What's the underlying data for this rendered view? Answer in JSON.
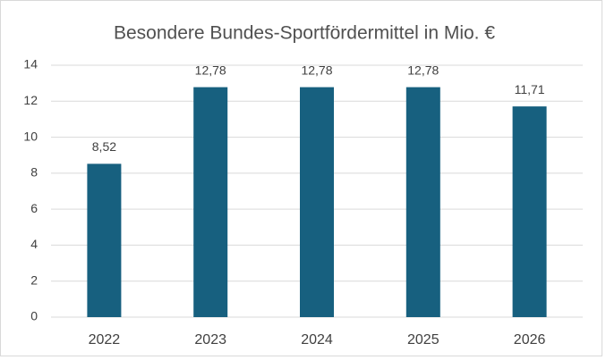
{
  "chart_data": {
    "type": "bar",
    "title": "Besondere Bundes-Sportfördermittel in Mio. €",
    "categories": [
      "2022",
      "2023",
      "2024",
      "2025",
      "2026"
    ],
    "values": [
      8.52,
      12.78,
      12.78,
      12.78,
      11.71
    ],
    "value_labels": [
      "8,52",
      "12,78",
      "12,78",
      "12,78",
      "11,71"
    ],
    "color": "#17607f",
    "ylim": [
      0,
      14
    ],
    "yticks": [
      0,
      2,
      4,
      6,
      8,
      10,
      12,
      14
    ],
    "grid": true
  }
}
